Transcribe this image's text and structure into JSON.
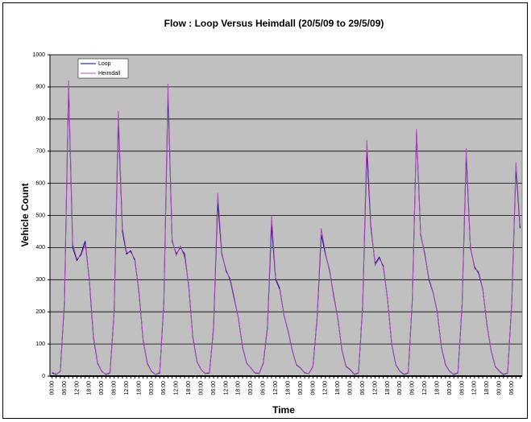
{
  "chart_data": {
    "type": "line",
    "title": "Flow : Loop Versus Heimdall (20/5/09 to 29/5/09)",
    "x_label": "Time",
    "y_label": "Vehicle Count",
    "categories": [
      "00:00",
      null,
      null,
      "06:00",
      null,
      null,
      "12:00",
      null,
      null,
      "18:00",
      null,
      null,
      "00:00",
      null,
      null,
      "06:00",
      null,
      null,
      "12:00",
      null,
      null,
      "18:00",
      null,
      null,
      "00:00",
      null,
      null,
      "06:00",
      null,
      null,
      "12:00",
      null,
      null,
      "18:00",
      null,
      null,
      "00:00",
      null,
      null,
      "06:00",
      null,
      null,
      "12:00",
      null,
      null,
      "18:00",
      null,
      null,
      "00:00",
      null,
      null,
      "06:00",
      null,
      null,
      "12:00",
      null,
      null,
      "18:00",
      null,
      null,
      "00:00",
      null,
      null,
      "06:00",
      null,
      null,
      "12:00",
      null,
      null,
      "18:00",
      null,
      null,
      "00:00",
      null,
      null,
      "06:00",
      null,
      null,
      "12:00",
      null,
      null,
      "18:00",
      null,
      null,
      "00:00",
      null,
      null,
      "06:00",
      null,
      null,
      "12:00",
      null,
      null,
      "18:00",
      null,
      null,
      "00:00",
      null,
      null,
      "06:00",
      null,
      null,
      "12:00",
      null,
      null,
      "18:00",
      null,
      null,
      "00:00",
      null,
      null,
      "06:00",
      null,
      null
    ],
    "series": [
      {
        "name": "Loop",
        "color": "#000080",
        "values": [
          10,
          5,
          15,
          230,
          900,
          400,
          360,
          380,
          420,
          300,
          120,
          40,
          15,
          5,
          10,
          200,
          800,
          450,
          380,
          390,
          360,
          260,
          110,
          40,
          15,
          5,
          10,
          230,
          880,
          420,
          380,
          400,
          380,
          280,
          120,
          45,
          20,
          8,
          10,
          150,
          540,
          380,
          330,
          300,
          240,
          180,
          90,
          40,
          25,
          10,
          8,
          40,
          150,
          470,
          300,
          270,
          190,
          140,
          80,
          35,
          25,
          10,
          8,
          30,
          180,
          440,
          380,
          330,
          250,
          180,
          80,
          30,
          20,
          5,
          10,
          220,
          700,
          460,
          350,
          370,
          340,
          240,
          100,
          35,
          15,
          5,
          10,
          240,
          760,
          440,
          380,
          300,
          260,
          200,
          90,
          35,
          15,
          5,
          10,
          220,
          690,
          400,
          340,
          320,
          270,
          160,
          80,
          30,
          15,
          5,
          10,
          230,
          650,
          460
        ]
      },
      {
        "name": "Heimdall",
        "color": "#b04fb8",
        "values": [
          12,
          6,
          14,
          240,
          920,
          410,
          365,
          375,
          410,
          305,
          125,
          42,
          14,
          6,
          11,
          205,
          825,
          460,
          385,
          385,
          365,
          255,
          112,
          38,
          16,
          5,
          12,
          235,
          910,
          425,
          375,
          405,
          370,
          285,
          118,
          44,
          20,
          9,
          11,
          155,
          570,
          385,
          325,
          305,
          245,
          178,
          92,
          41,
          24,
          11,
          9,
          42,
          155,
          500,
          305,
          275,
          188,
          142,
          78,
          36,
          26,
          9,
          8,
          31,
          185,
          460,
          385,
          325,
          255,
          178,
          82,
          31,
          21,
          6,
          11,
          225,
          735,
          470,
          345,
          365,
          345,
          238,
          102,
          36,
          16,
          6,
          11,
          245,
          770,
          445,
          375,
          305,
          262,
          198,
          88,
          34,
          14,
          6,
          11,
          225,
          710,
          405,
          335,
          325,
          272,
          158,
          82,
          31,
          16,
          6,
          11,
          235,
          665,
          470
        ]
      }
    ],
    "ylim": [
      0,
      1000
    ],
    "yticks": [
      0,
      100,
      200,
      300,
      400,
      500,
      600,
      700,
      800,
      900,
      1000
    ],
    "grid": true,
    "legend": "top-left",
    "plot_background": "#c0c0c0"
  }
}
